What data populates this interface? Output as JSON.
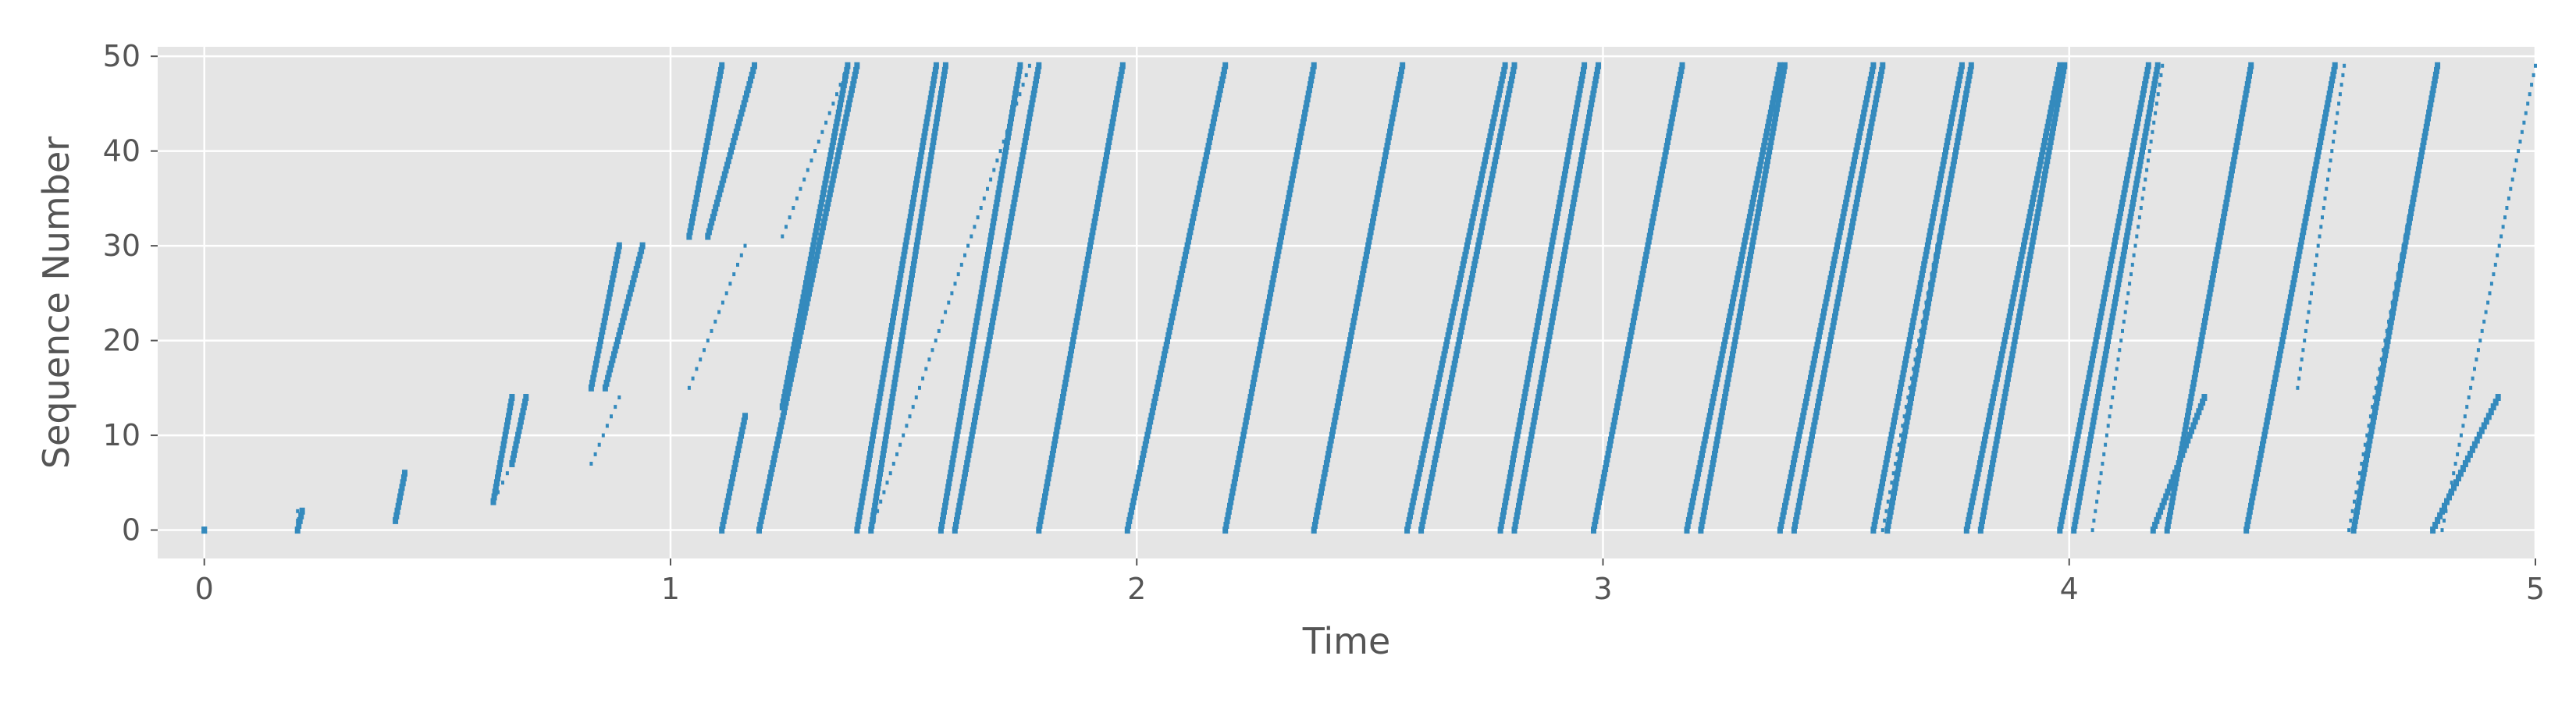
{
  "chart_data": {
    "type": "scatter",
    "title": "",
    "xlabel": "Time",
    "ylabel": "Sequence Number",
    "xlim": [
      -0.1,
      5
    ],
    "ylim": [
      -3,
      51
    ],
    "xticks": [
      0,
      1,
      2,
      3,
      4,
      5
    ],
    "yticks": [
      0,
      10,
      20,
      30,
      40,
      50
    ],
    "grid": true,
    "legend": "none",
    "colors": {
      "plot_bg": "#e5e5e5",
      "grid": "#ffffff",
      "marker": "#348abd",
      "text": "#555555"
    },
    "series": [
      {
        "kind": "dense",
        "segments": [
          [
            0.0,
            0,
            0.0,
            0
          ],
          [
            0.2,
            0,
            0.21,
            2
          ],
          [
            0.41,
            1,
            0.43,
            6
          ],
          [
            0.62,
            3,
            0.66,
            14
          ],
          [
            0.66,
            7,
            0.69,
            14
          ],
          [
            0.83,
            15,
            0.89,
            30
          ],
          [
            0.86,
            15,
            0.94,
            30
          ],
          [
            1.04,
            31,
            1.11,
            49
          ],
          [
            1.08,
            31,
            1.18,
            49
          ],
          [
            1.11,
            0,
            1.16,
            12
          ],
          [
            1.19,
            0,
            1.4,
            49
          ],
          [
            1.24,
            13,
            1.38,
            49
          ],
          [
            1.4,
            0,
            1.57,
            49
          ],
          [
            1.43,
            0,
            1.59,
            49
          ],
          [
            1.58,
            0,
            1.75,
            49
          ],
          [
            1.61,
            0,
            1.79,
            49
          ],
          [
            1.79,
            0,
            1.97,
            49
          ],
          [
            1.98,
            0,
            2.19,
            49
          ],
          [
            2.19,
            0,
            2.38,
            49
          ],
          [
            2.38,
            0,
            2.57,
            49
          ],
          [
            2.58,
            0,
            2.79,
            49
          ],
          [
            2.61,
            0,
            2.81,
            49
          ],
          [
            2.78,
            0,
            2.96,
            49
          ],
          [
            2.81,
            0,
            2.99,
            49
          ],
          [
            2.98,
            0,
            3.17,
            49
          ],
          [
            3.18,
            0,
            3.38,
            49
          ],
          [
            3.21,
            0,
            3.39,
            49
          ],
          [
            3.38,
            0,
            3.58,
            49
          ],
          [
            3.41,
            0,
            3.6,
            49
          ],
          [
            3.58,
            0,
            3.77,
            49
          ],
          [
            3.61,
            0,
            3.79,
            49
          ],
          [
            3.78,
            0,
            3.98,
            49
          ],
          [
            3.81,
            0,
            3.99,
            49
          ],
          [
            3.98,
            0,
            4.17,
            49
          ],
          [
            4.01,
            0,
            4.19,
            49
          ],
          [
            4.18,
            0,
            4.29,
            14
          ],
          [
            4.21,
            0,
            4.39,
            49
          ],
          [
            4.38,
            0,
            4.57,
            49
          ],
          [
            4.61,
            0,
            4.79,
            49
          ],
          [
            4.78,
            0,
            4.92,
            14
          ]
        ]
      },
      {
        "kind": "sparse",
        "segments": [
          [
            0.2,
            0,
            0.2,
            2
          ],
          [
            0.41,
            1,
            0.42,
            4
          ],
          [
            0.62,
            3,
            0.65,
            6
          ],
          [
            0.83,
            7,
            0.89,
            14
          ],
          [
            1.04,
            15,
            1.16,
            30
          ],
          [
            1.24,
            31,
            1.38,
            49
          ],
          [
            1.43,
            0,
            1.77,
            49
          ],
          [
            3.6,
            0,
            3.79,
            49
          ],
          [
            4.05,
            0,
            4.2,
            49
          ],
          [
            4.49,
            15,
            4.59,
            49
          ],
          [
            4.6,
            0,
            4.79,
            49
          ],
          [
            4.8,
            0,
            5.0,
            49
          ]
        ]
      }
    ]
  }
}
